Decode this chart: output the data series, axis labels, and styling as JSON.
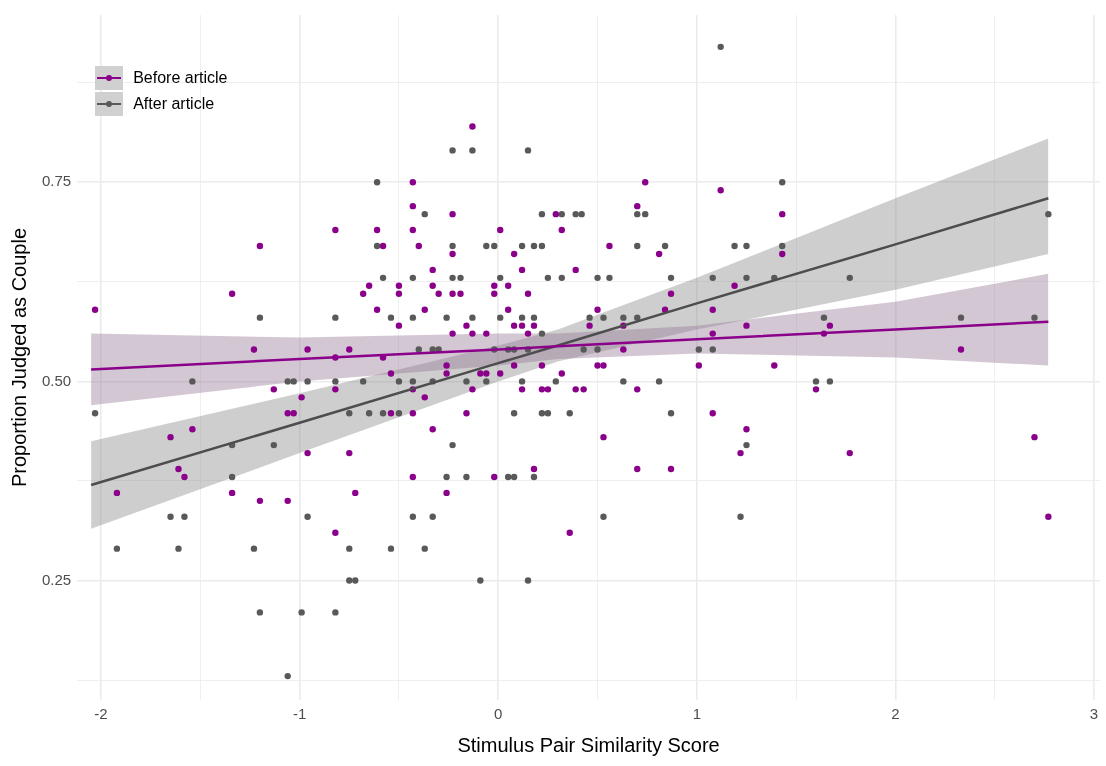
{
  "chart_data": {
    "type": "scatter",
    "xlabel": "Stimulus Pair Similarity Score",
    "ylabel": "Proportion Judged as Couple",
    "xlim": [
      -2.12,
      3.03
    ],
    "ylim": [
      0.1,
      0.96
    ],
    "xticks": [
      -2,
      {
        "value": -1.5,
        "label": null
      },
      -1,
      {
        "value": -0.5,
        "label": null
      },
      0,
      {
        "value": 0.5,
        "label": null
      },
      1,
      {
        "value": 1.5,
        "label": null
      },
      2,
      {
        "value": 2.5,
        "label": null
      },
      3
    ],
    "yticks": [
      {
        "value": 0.125,
        "label": null
      },
      {
        "value": 0.25,
        "label": "0.25"
      },
      {
        "value": 0.375,
        "label": null
      },
      {
        "value": 0.5,
        "label": "0.50"
      },
      {
        "value": 0.625,
        "label": null
      },
      {
        "value": 0.75,
        "label": "0.75"
      },
      {
        "value": 0.875,
        "label": null
      }
    ],
    "grid": true,
    "legend": "top left",
    "series": [
      {
        "name": "Before article",
        "color": "#8b008b",
        "marker": "circle",
        "x": [
          -0.82,
          -0.61,
          -1.2,
          -0.58,
          -0.65,
          -0.68,
          -1.34,
          -2.03,
          -0.61,
          -1.23,
          -0.96,
          -0.75,
          -0.82,
          -0.58,
          -1.13,
          -0.82,
          -0.99,
          -1.06,
          -1.03,
          -1.54,
          -1.65,
          -0.96,
          -0.75,
          -1.61,
          -1.58,
          -1.92,
          -1.34,
          -0.72,
          -1.2,
          -1.06,
          -0.82,
          -0.13,
          -0.43,
          -0.43,
          -0.23,
          0.29,
          -0.43,
          0.01,
          0.32,
          -0.4,
          -0.23,
          0.08,
          -0.33,
          0.12,
          0.39,
          -0.5,
          -0.33,
          -0.02,
          0.05,
          -0.5,
          -0.3,
          -0.23,
          -0.19,
          -0.02,
          0.15,
          -0.37,
          0.05,
          -0.5,
          -0.16,
          0.08,
          0.12,
          0.18,
          -0.23,
          -0.13,
          -0.06,
          0.15,
          -0.26,
          0.08,
          0.22,
          -0.54,
          -0.26,
          -0.09,
          -0.06,
          0.01,
          0.32,
          -0.43,
          -0.13,
          0.12,
          0.22,
          0.25,
          0.39,
          -0.37,
          -0.54,
          -0.43,
          -0.16,
          -0.33,
          -0.43,
          -0.02,
          0.18,
          -0.26,
          0.36,
          0.74,
          1.12,
          0.7,
          1.43,
          0.56,
          0.81,
          1.43,
          1.19,
          0.87,
          0.5,
          0.84,
          1.08,
          0.46,
          0.63,
          1.25,
          1.67,
          1.08,
          1.64,
          0.63,
          0.5,
          0.53,
          1.01,
          1.39,
          0.43,
          0.7,
          1.6,
          1.08,
          1.25,
          1.22,
          0.53,
          0.7,
          0.87,
          1.77,
          2.33,
          2.7,
          2.77
        ],
        "values": [
          0.69,
          0.69,
          0.67,
          0.67,
          0.62,
          0.61,
          0.61,
          0.59,
          0.59,
          0.54,
          0.54,
          0.54,
          0.53,
          0.53,
          0.49,
          0.49,
          0.48,
          0.46,
          0.46,
          0.44,
          0.43,
          0.41,
          0.41,
          0.39,
          0.38,
          0.36,
          0.36,
          0.36,
          0.35,
          0.35,
          0.31,
          0.82,
          0.75,
          0.72,
          0.71,
          0.71,
          0.69,
          0.69,
          0.69,
          0.67,
          0.66,
          0.66,
          0.64,
          0.64,
          0.64,
          0.62,
          0.62,
          0.62,
          0.62,
          0.61,
          0.61,
          0.61,
          0.61,
          0.61,
          0.61,
          0.59,
          0.59,
          0.57,
          0.57,
          0.57,
          0.57,
          0.57,
          0.56,
          0.56,
          0.56,
          0.56,
          0.52,
          0.52,
          0.52,
          0.51,
          0.51,
          0.51,
          0.51,
          0.51,
          0.51,
          0.49,
          0.49,
          0.49,
          0.49,
          0.49,
          0.49,
          0.48,
          0.46,
          0.46,
          0.46,
          0.44,
          0.38,
          0.38,
          0.39,
          0.36,
          0.31,
          0.75,
          0.74,
          0.72,
          0.71,
          0.67,
          0.66,
          0.66,
          0.62,
          0.61,
          0.59,
          0.59,
          0.59,
          0.57,
          0.57,
          0.57,
          0.57,
          0.56,
          0.56,
          0.54,
          0.52,
          0.52,
          0.52,
          0.52,
          0.49,
          0.49,
          0.49,
          0.46,
          0.44,
          0.41,
          0.43,
          0.39,
          0.39,
          0.41,
          0.54,
          0.43,
          0.33
        ]
      },
      {
        "name": "After article",
        "color": "#595959",
        "marker": "circle",
        "x": [
          -0.61,
          -0.61,
          -0.58,
          -1.2,
          -0.82,
          -1.54,
          -1.06,
          -1.03,
          -0.96,
          -0.82,
          -0.68,
          -2.03,
          -0.75,
          -0.65,
          -0.58,
          -1.34,
          -1.13,
          -1.34,
          -1.65,
          -1.58,
          -0.96,
          -1.92,
          -1.61,
          -1.23,
          -0.75,
          -0.75,
          -0.72,
          -1.2,
          -0.99,
          -0.82,
          -1.06,
          -0.23,
          -0.13,
          0.15,
          -0.37,
          0.22,
          0.32,
          0.39,
          0.42,
          -0.23,
          -0.06,
          -0.02,
          0.12,
          0.18,
          0.22,
          -0.43,
          -0.23,
          -0.19,
          0.01,
          0.25,
          0.32,
          -0.54,
          -0.43,
          -0.26,
          -0.13,
          0.01,
          0.12,
          0.18,
          0.22,
          -0.4,
          -0.33,
          -0.3,
          -0.02,
          0.05,
          0.08,
          0.15,
          -0.5,
          -0.43,
          -0.33,
          -0.16,
          -0.06,
          0.12,
          0.29,
          -0.5,
          0.08,
          0.22,
          0.25,
          0.36,
          -0.23,
          -0.26,
          -0.16,
          0.05,
          0.08,
          0.18,
          -0.43,
          -0.33,
          -0.54,
          -0.37,
          -0.09,
          0.15,
          1.12,
          1.43,
          0.7,
          0.74,
          0.7,
          0.84,
          1.19,
          1.25,
          1.43,
          0.5,
          0.56,
          0.87,
          1.08,
          1.25,
          1.39,
          0.46,
          0.53,
          0.63,
          0.7,
          1.64,
          0.43,
          0.5,
          1.01,
          1.08,
          0.63,
          0.81,
          1.6,
          1.67,
          0.87,
          1.25,
          0.53,
          1.22,
          1.77,
          2.33,
          2.7,
          2.77
        ],
        "values": [
          0.75,
          0.67,
          0.63,
          0.58,
          0.58,
          0.5,
          0.5,
          0.5,
          0.5,
          0.5,
          0.5,
          0.46,
          0.46,
          0.46,
          0.46,
          0.42,
          0.42,
          0.38,
          0.33,
          0.33,
          0.33,
          0.29,
          0.29,
          0.29,
          0.29,
          0.25,
          0.25,
          0.21,
          0.21,
          0.21,
          0.13,
          0.79,
          0.79,
          0.79,
          0.71,
          0.71,
          0.71,
          0.71,
          0.71,
          0.67,
          0.67,
          0.67,
          0.67,
          0.67,
          0.67,
          0.63,
          0.63,
          0.63,
          0.63,
          0.63,
          0.63,
          0.58,
          0.58,
          0.58,
          0.58,
          0.58,
          0.58,
          0.58,
          0.56,
          0.54,
          0.54,
          0.54,
          0.54,
          0.54,
          0.54,
          0.54,
          0.5,
          0.5,
          0.5,
          0.5,
          0.5,
          0.5,
          0.5,
          0.46,
          0.46,
          0.46,
          0.46,
          0.46,
          0.42,
          0.38,
          0.38,
          0.38,
          0.38,
          0.38,
          0.33,
          0.33,
          0.29,
          0.29,
          0.25,
          0.25,
          0.92,
          0.75,
          0.71,
          0.71,
          0.67,
          0.67,
          0.67,
          0.67,
          0.67,
          0.63,
          0.63,
          0.63,
          0.63,
          0.63,
          0.63,
          0.58,
          0.58,
          0.58,
          0.58,
          0.58,
          0.54,
          0.54,
          0.54,
          0.54,
          0.5,
          0.5,
          0.5,
          0.5,
          0.46,
          0.42,
          0.33,
          0.33,
          0.63,
          0.58,
          0.58,
          0.71
        ]
      },
      {
        "type": "line",
        "color": "#8b008b",
        "x": [
          -2.05,
          -1,
          0,
          0.3,
          1,
          2,
          2.77
        ],
        "values": [
          0.515,
          0.528,
          0.54,
          0.544,
          0.553,
          0.565,
          0.575
        ],
        "lower": [
          0.47,
          0.5,
          0.52,
          0.528,
          0.535,
          0.53,
          0.52
        ],
        "upper": [
          0.56,
          0.555,
          0.56,
          0.56,
          0.57,
          0.6,
          0.635
        ]
      },
      {
        "type": "line",
        "color": "#4d4d4d",
        "x": [
          -2.05,
          -1,
          0,
          0.3,
          1,
          2,
          2.77
        ],
        "values": [
          0.37,
          0.448,
          0.523,
          0.545,
          0.598,
          0.672,
          0.73
        ],
        "lower": [
          0.315,
          0.41,
          0.5,
          0.525,
          0.565,
          0.615,
          0.66
        ],
        "upper": [
          0.425,
          0.485,
          0.545,
          0.565,
          0.63,
          0.73,
          0.805
        ]
      }
    ]
  }
}
